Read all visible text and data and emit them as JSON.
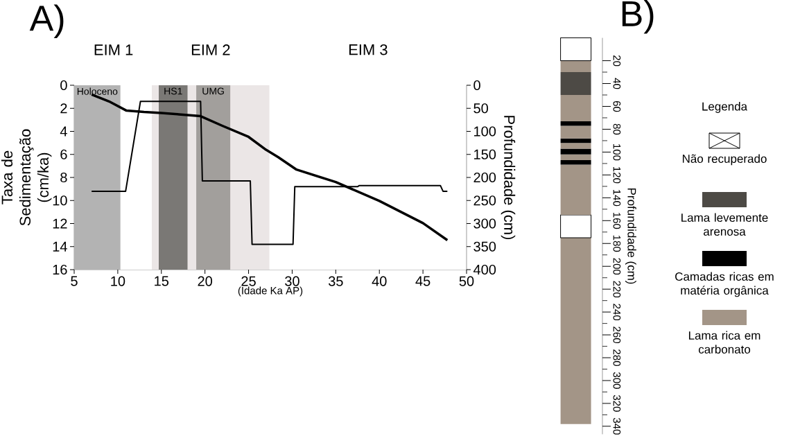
{
  "chart_data": [
    {
      "type": "line",
      "title": "A)",
      "xlabel": "(Idade Ka AP)",
      "ylabel": "Taxa de Sedimentação (cm/ka)",
      "y2label": "Profundidade (cm)",
      "xlim": [
        5,
        50
      ],
      "xticks": [
        5,
        10,
        15,
        20,
        25,
        30,
        35,
        40,
        45,
        50
      ],
      "ylim": [
        16,
        0
      ],
      "yticks": [
        0,
        2,
        4,
        6,
        8,
        10,
        12,
        14,
        16
      ],
      "y2lim": [
        400,
        0
      ],
      "y2ticks": [
        0,
        50,
        100,
        150,
        200,
        250,
        300,
        350,
        400
      ],
      "bands": [
        {
          "axis": "x",
          "from": 5,
          "to": 14,
          "label": "EIM 1",
          "color": "#ffffff"
        },
        {
          "axis": "x",
          "from": 13.9,
          "to": 27.4,
          "label": "EIM 2",
          "color": "#ebe6e6"
        },
        {
          "axis": "x",
          "from": 27.4,
          "to": 50,
          "label": "EIM 3",
          "color": "#ffffff"
        },
        {
          "axis": "x",
          "from": 5,
          "to": 10.3,
          "label": "Holoceno",
          "color": "#b3b3b3"
        },
        {
          "axis": "x",
          "from": 14.7,
          "to": 18,
          "label": "HS1",
          "color": "#7a7875"
        },
        {
          "axis": "x",
          "from": 19,
          "to": 22.9,
          "label": "UMG",
          "color": "#a29f9c"
        }
      ],
      "series": [
        {
          "color": "#000000",
          "x": [
            7,
            10.9,
            12.6,
            19.5,
            19.7,
            25.2,
            25.4,
            30.1,
            30.3,
            37.5,
            37.7,
            47,
            47.3,
            47.8
          ],
          "values": [
            9.2,
            9.2,
            1.4,
            1.4,
            8.3,
            8.3,
            13.8,
            13.8,
            8.8,
            8.8,
            8.7,
            8.7,
            9.2,
            9.2
          ]
        },
        {
          "color": "#000000",
          "axis": "y2",
          "x": [
            7,
            9,
            11,
            13,
            15,
            17,
            19.5,
            22,
            25,
            27,
            28.4,
            30.5,
            35,
            40,
            45,
            47.8
          ],
          "values": [
            20,
            35,
            55,
            58,
            60,
            63,
            67,
            88,
            112,
            140,
            156,
            183,
            210,
            251,
            299,
            336
          ]
        }
      ]
    },
    {
      "type": "bar",
      "stacked": true,
      "title": "B)",
      "ylabel": "Profundidade (cm)",
      "legend_title": "Legenda",
      "legend": "right",
      "categories": [
        null
      ],
      "ylim": [
        347,
        0
      ],
      "yticks": [
        20,
        40,
        60,
        80,
        100,
        120,
        140,
        160,
        180,
        200,
        220,
        240,
        260,
        280,
        300,
        320,
        340
      ],
      "series": [
        {
          "name": "Não recuperado",
          "color": "#ffffff",
          "values": [
            20
          ]
        },
        {
          "color": "#a39587",
          "values": [
            10
          ]
        },
        {
          "name": "Lama levemente arenosa",
          "color": "#4d4a45",
          "values": [
            20
          ]
        },
        {
          "color": "#a39587",
          "values": [
            23
          ]
        },
        {
          "name": "Camadas ricas em matéria orgânica",
          "color": "#000000",
          "values": [
            4
          ]
        },
        {
          "color": "#a39587",
          "values": [
            11
          ]
        },
        {
          "color": "#000000",
          "values": [
            4
          ]
        },
        {
          "color": "#a39587",
          "values": [
            5
          ]
        },
        {
          "color": "#000000",
          "values": [
            5
          ]
        },
        {
          "color": "#a39587",
          "values": [
            5
          ]
        },
        {
          "color": "#000000",
          "values": [
            4
          ]
        },
        {
          "color": "#a39587",
          "values": [
            44
          ]
        },
        {
          "color": "#ffffff",
          "values": [
            20
          ]
        },
        {
          "name": "Lama rica em carbonato",
          "color": "#a39587",
          "values": [
            163
          ]
        }
      ]
    }
  ]
}
